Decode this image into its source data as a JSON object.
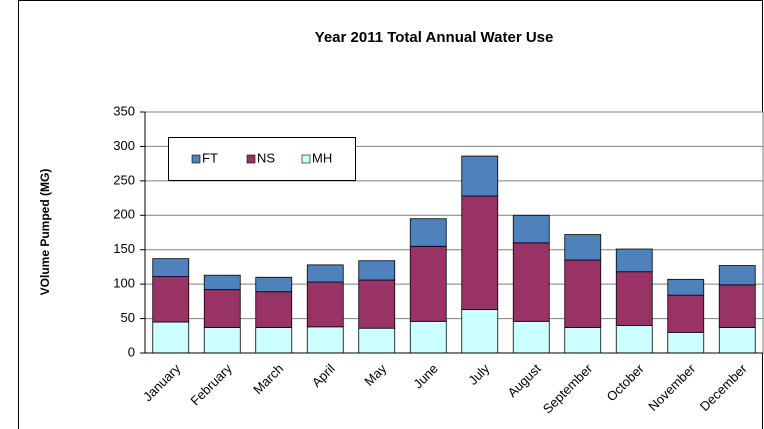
{
  "chart_data": {
    "type": "stacked-bar",
    "title": "Year 2011 Total Annual  Water Use",
    "y_label": "VOlume Pumped (MG)",
    "categories": [
      "January",
      "February",
      "March",
      "April",
      "May",
      "June",
      "July",
      "August",
      "September",
      "October",
      "November",
      "December"
    ],
    "series": [
      {
        "name": "MH",
        "color": "#ccffff",
        "values": [
          45,
          37,
          37,
          38,
          36,
          46,
          63,
          46,
          37,
          40,
          30,
          37
        ]
      },
      {
        "name": "NS",
        "color": "#993366",
        "values": [
          66,
          55,
          52,
          65,
          70,
          109,
          165,
          114,
          98,
          78,
          54,
          62
        ]
      },
      {
        "name": "FT",
        "color": "#4f81bd",
        "values": [
          26,
          21,
          21,
          25,
          28,
          40,
          58,
          40,
          37,
          33,
          23,
          28
        ]
      }
    ],
    "ylim": [
      0,
      350
    ],
    "yticks": [
      0,
      50,
      100,
      150,
      200,
      250,
      300,
      350
    ],
    "grid": true
  }
}
